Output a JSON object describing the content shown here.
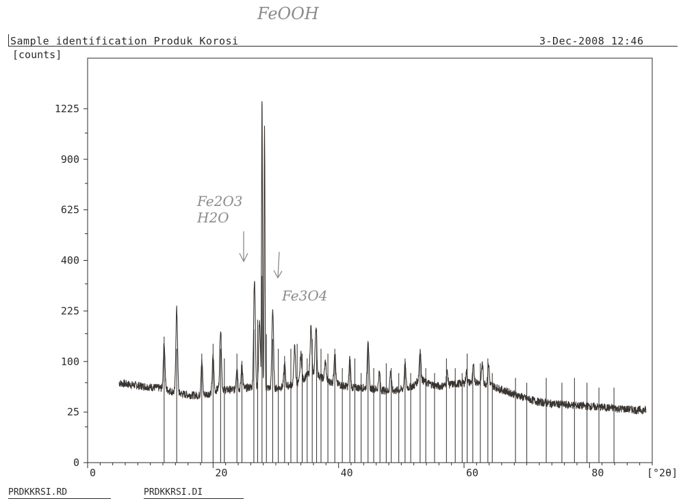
{
  "header": {
    "title": "Sample identification Produk Korosi",
    "datetime": "3-Dec-2008 12:46"
  },
  "handwritten": {
    "top_note": "FeOOH",
    "note_fe2o3": "Fe2O3 H2O",
    "note_fe3o4": "Fe3O4"
  },
  "footer": {
    "file1": "PRDKKRSI.RD",
    "file2": "PRDKKRSI.DI"
  },
  "colors": {
    "axis": "#2a2a2a",
    "trace": "#3a3430",
    "background": "#ffffff"
  },
  "chart_data": {
    "type": "line",
    "title": "Sample identification Produk Korosi",
    "ylabel": "[counts]",
    "xlabel": "[°2θ]",
    "y_scale": "sqrt",
    "ylim": [
      0,
      1600
    ],
    "xlim": [
      0,
      90
    ],
    "y_ticks": [
      0,
      25,
      100,
      225,
      400,
      625,
      900,
      1225
    ],
    "x_ticks": [
      0,
      20,
      40,
      60,
      80
    ],
    "grid": false,
    "baseline": [
      [
        5,
        62
      ],
      [
        8,
        58
      ],
      [
        10,
        56
      ],
      [
        12,
        54
      ],
      [
        14,
        48
      ],
      [
        16,
        45
      ],
      [
        18,
        44
      ],
      [
        20,
        48
      ],
      [
        21,
        55
      ],
      [
        22,
        52
      ],
      [
        24,
        52
      ],
      [
        26,
        56
      ],
      [
        28,
        55
      ],
      [
        30,
        54
      ],
      [
        32,
        58
      ],
      [
        34,
        64
      ],
      [
        35,
        75
      ],
      [
        36,
        80
      ],
      [
        38,
        66
      ],
      [
        40,
        60
      ],
      [
        42,
        55
      ],
      [
        44,
        55
      ],
      [
        46,
        53
      ],
      [
        48,
        50
      ],
      [
        50,
        52
      ],
      [
        52,
        58
      ],
      [
        53,
        70
      ],
      [
        54,
        62
      ],
      [
        56,
        57
      ],
      [
        58,
        60
      ],
      [
        60,
        62
      ],
      [
        62,
        64
      ],
      [
        64,
        60
      ],
      [
        66,
        52
      ],
      [
        68,
        46
      ],
      [
        70,
        40
      ],
      [
        72,
        36
      ],
      [
        74,
        34
      ],
      [
        76,
        33
      ],
      [
        78,
        32
      ],
      [
        80,
        31
      ],
      [
        82,
        30
      ],
      [
        84,
        29
      ],
      [
        86,
        28
      ],
      [
        88,
        27
      ],
      [
        89,
        27
      ]
    ],
    "peaks": [
      [
        12.2,
        140
      ],
      [
        14.2,
        230
      ],
      [
        18.2,
        100
      ],
      [
        20.0,
        110
      ],
      [
        21.2,
        175
      ],
      [
        23.8,
        90
      ],
      [
        24.6,
        95
      ],
      [
        26.6,
        320
      ],
      [
        27.4,
        200
      ],
      [
        27.8,
        1300
      ],
      [
        28.2,
        1100
      ],
      [
        29.5,
        230
      ],
      [
        31.4,
        95
      ],
      [
        33.0,
        130
      ],
      [
        34.0,
        115
      ],
      [
        35.6,
        180
      ],
      [
        36.4,
        180
      ],
      [
        37.9,
        100
      ],
      [
        39.4,
        120
      ],
      [
        41.8,
        105
      ],
      [
        44.7,
        150
      ],
      [
        46.5,
        80
      ],
      [
        48.3,
        80
      ],
      [
        50.6,
        95
      ],
      [
        53.0,
        125
      ],
      [
        57.3,
        80
      ],
      [
        60.4,
        80
      ],
      [
        61.5,
        90
      ],
      [
        62.9,
        95
      ],
      [
        63.9,
        95
      ]
    ],
    "reference_lines": [
      [
        12.2,
        0.35
      ],
      [
        14.2,
        0.3
      ],
      [
        18.2,
        0.28
      ],
      [
        20.0,
        0.32
      ],
      [
        21.2,
        0.3
      ],
      [
        21.8,
        0.26
      ],
      [
        23.8,
        0.28
      ],
      [
        24.6,
        0.25
      ],
      [
        26.5,
        0.38
      ],
      [
        27.1,
        0.42
      ],
      [
        27.8,
        0.6
      ],
      [
        28.5,
        0.36
      ],
      [
        29.5,
        0.34
      ],
      [
        30.4,
        0.3
      ],
      [
        31.4,
        0.27
      ],
      [
        32.4,
        0.3
      ],
      [
        33.4,
        0.32
      ],
      [
        34.2,
        0.28
      ],
      [
        35.0,
        0.26
      ],
      [
        35.8,
        0.34
      ],
      [
        36.5,
        0.38
      ],
      [
        37.2,
        0.3
      ],
      [
        38.3,
        0.28
      ],
      [
        39.4,
        0.3
      ],
      [
        40.6,
        0.22
      ],
      [
        41.8,
        0.24
      ],
      [
        42.6,
        0.26
      ],
      [
        43.6,
        0.2
      ],
      [
        44.7,
        0.32
      ],
      [
        45.6,
        0.22
      ],
      [
        46.6,
        0.2
      ],
      [
        47.6,
        0.24
      ],
      [
        48.4,
        0.22
      ],
      [
        49.6,
        0.2
      ],
      [
        50.6,
        0.26
      ],
      [
        51.5,
        0.2
      ],
      [
        53.0,
        0.28
      ],
      [
        53.9,
        0.22
      ],
      [
        55.3,
        0.2
      ],
      [
        57.2,
        0.26
      ],
      [
        58.6,
        0.22
      ],
      [
        59.7,
        0.2
      ],
      [
        60.5,
        0.28
      ],
      [
        61.4,
        0.22
      ],
      [
        62.6,
        0.24
      ],
      [
        63.8,
        0.26
      ],
      [
        64.5,
        0.2
      ],
      [
        68.2,
        0.18
      ],
      [
        70.0,
        0.16
      ],
      [
        73.1,
        0.18
      ],
      [
        75.6,
        0.16
      ],
      [
        77.6,
        0.18
      ],
      [
        79.6,
        0.16
      ],
      [
        81.5,
        0.14
      ],
      [
        83.9,
        0.14
      ]
    ]
  }
}
